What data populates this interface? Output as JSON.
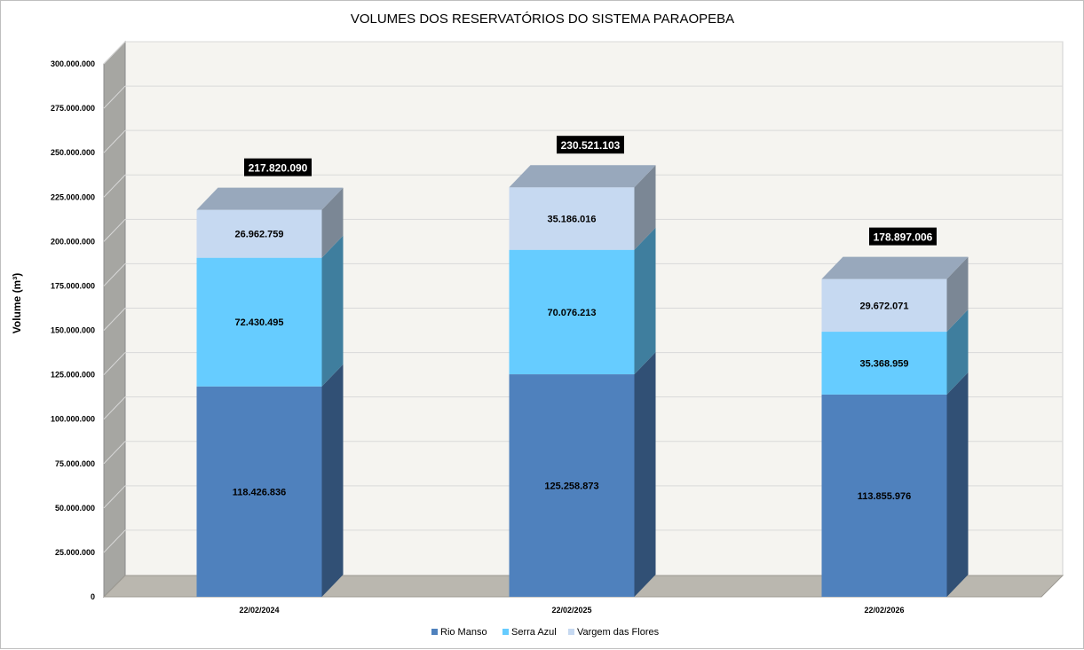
{
  "chart_data": {
    "type": "bar",
    "stacked": true,
    "title": "VOLUMES DOS RESERVATÓRIOS DO SISTEMA PARAOPEBA",
    "xlabel": "",
    "ylabel": "Volume (m³)",
    "ylim": [
      0,
      300000000
    ],
    "ytick_step": 25000000,
    "yticks": [
      "0",
      "25.000.000",
      "50.000.000",
      "75.000.000",
      "100.000.000",
      "125.000.000",
      "150.000.000",
      "175.000.000",
      "200.000.000",
      "225.000.000",
      "250.000.000",
      "275.000.000",
      "300.000.000"
    ],
    "grid": true,
    "legend": "bottom",
    "categories": [
      "22/02/2024",
      "22/02/2025",
      "22/02/2026"
    ],
    "series": [
      {
        "name": "Rio Manso",
        "values": [
          118426836,
          125258873,
          113855976
        ],
        "labels": [
          "118.426.836",
          "125.258.873",
          "113.855.976"
        ],
        "color": "#4f81bd"
      },
      {
        "name": "Serra Azul",
        "values": [
          72430495,
          70076213,
          35368959
        ],
        "labels": [
          "72.430.495",
          "70.076.213",
          "35.368.959"
        ],
        "color": "#66ccff"
      },
      {
        "name": "Vargem das Flores",
        "values": [
          26962759,
          35186016,
          29672071
        ],
        "labels": [
          "26.962.759",
          "35.186.016",
          "29.672.071"
        ],
        "color": "#c6d9f1"
      }
    ],
    "totals": [
      217820090,
      230521103,
      178897006
    ],
    "total_labels": [
      "217.820.090",
      "230.521.103",
      "178.897.006"
    ]
  }
}
